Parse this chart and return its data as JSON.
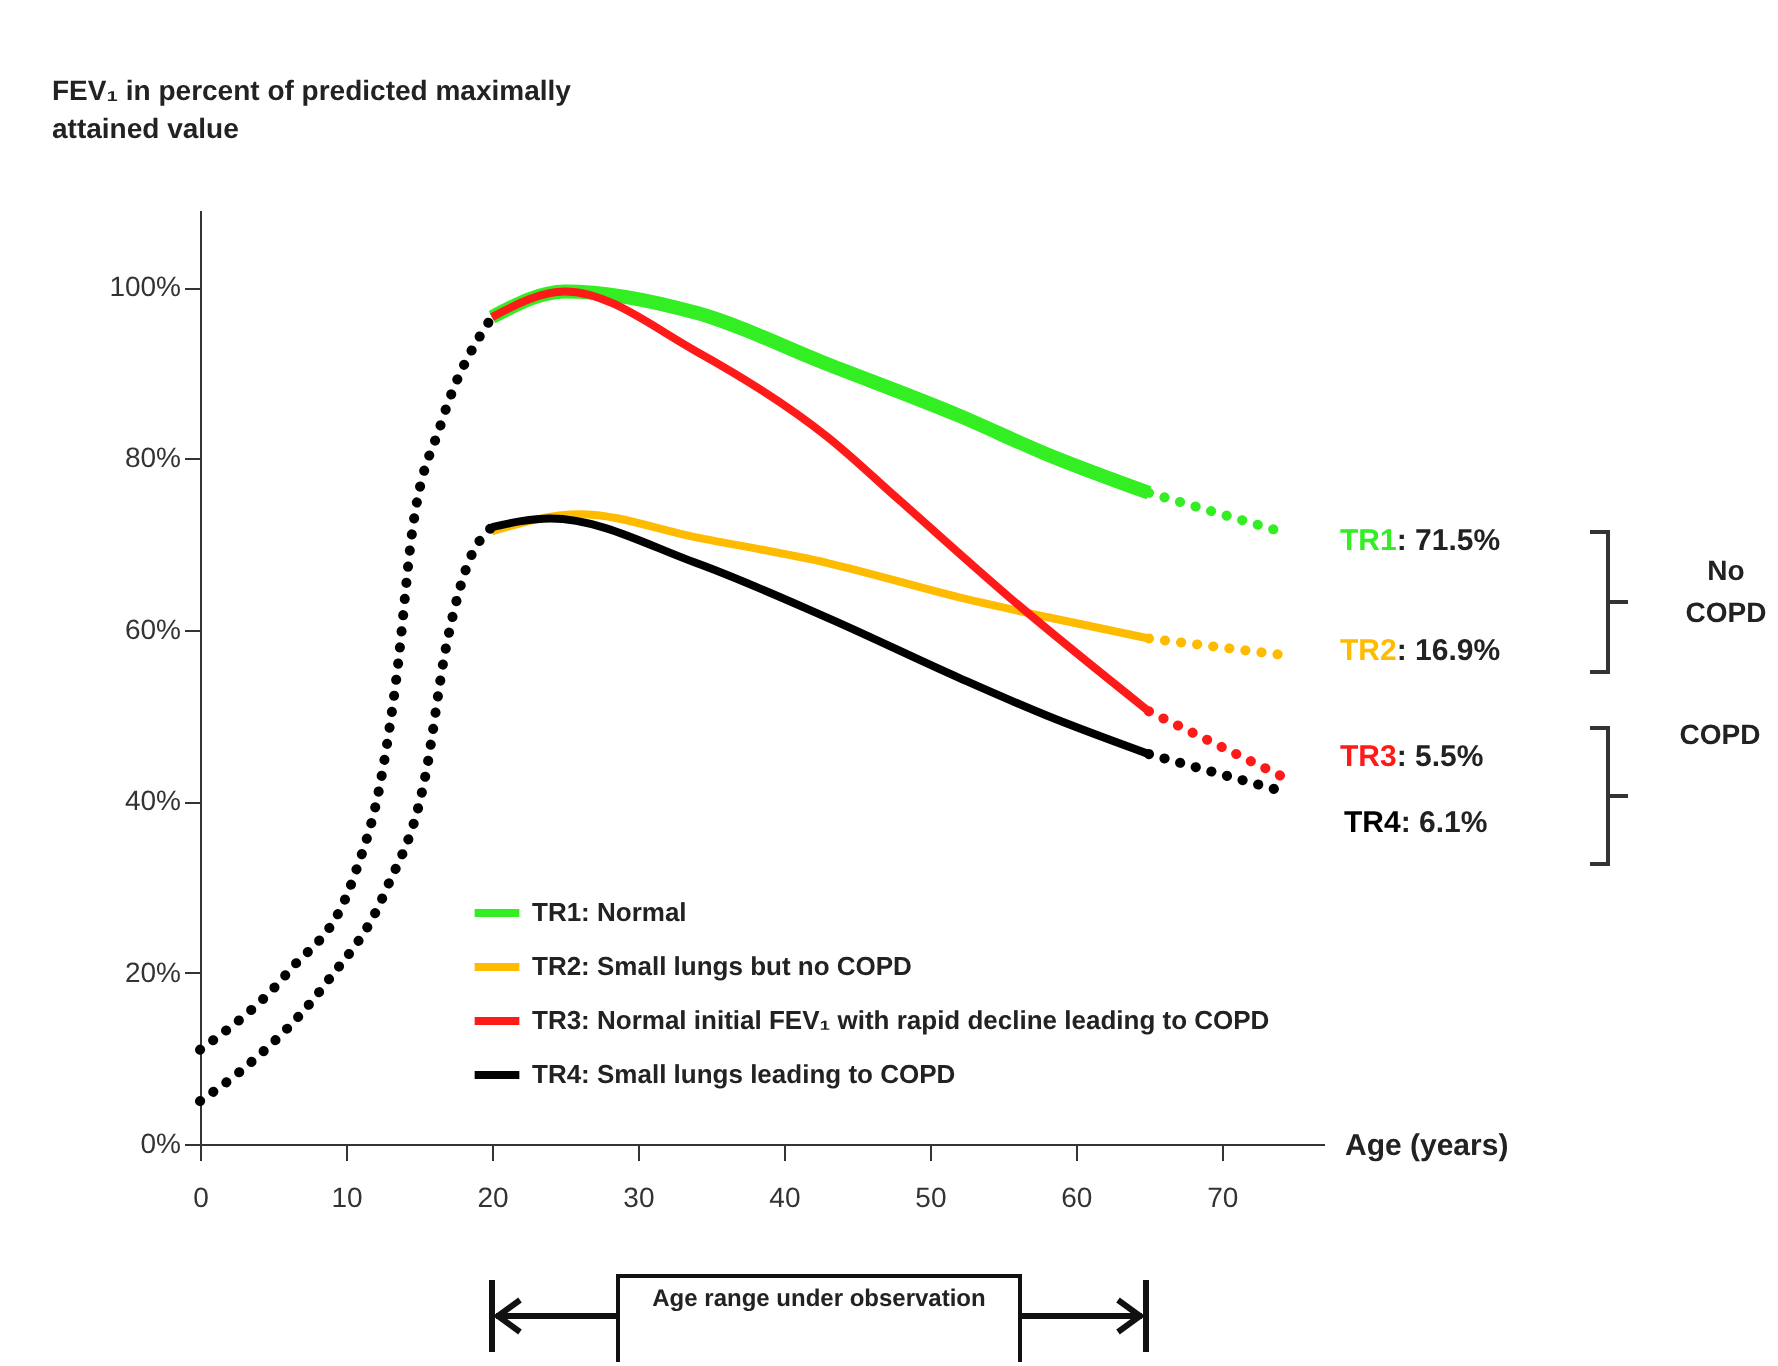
{
  "chart_data": {
    "type": "line",
    "ylabel": "FEV₁ in percent of predicted maximally attained value",
    "xlabel": "Age (years)",
    "xlim": [
      0,
      77
    ],
    "ylim": [
      0,
      109
    ],
    "xticks": [
      0,
      10,
      20,
      30,
      40,
      50,
      60,
      70
    ],
    "yticks": [
      {
        "value": 0,
        "label": "0%"
      },
      {
        "value": 20,
        "label": "20%"
      },
      {
        "value": 40,
        "label": "40%"
      },
      {
        "value": 60,
        "label": "60%"
      },
      {
        "value": 80,
        "label": "80%"
      },
      {
        "value": 100,
        "label": "100%"
      }
    ],
    "grid": false,
    "legend": "bottom",
    "series": [
      {
        "name": "TR1: Normal",
        "color": "#33ee22",
        "x": [
          20,
          25,
          34,
          43,
          52,
          58,
          65
        ],
        "values": [
          96.5,
          99.5,
          97,
          91,
          85,
          80.5,
          76
        ]
      },
      {
        "name": "TR2: Small lungs but no COPD",
        "color": "#ffbb00",
        "x": [
          20,
          26,
          34,
          43,
          52,
          58,
          65
        ],
        "values": [
          71.5,
          73.5,
          70.8,
          67.8,
          63.8,
          61.5,
          59
        ]
      },
      {
        "name": "TR3: Normal initial FEV₁ with rapid decline leading to COPD",
        "color": "#ff1a1a",
        "x": [
          20,
          25,
          34,
          43,
          48,
          56,
          65
        ],
        "values": [
          96.5,
          99.5,
          92.5,
          82.5,
          75,
          63,
          50.5
        ]
      },
      {
        "name": "TR4: Small lungs leading to COPD",
        "color": "#000000",
        "x": [
          20,
          24,
          34,
          43,
          52,
          58,
          65
        ],
        "values": [
          72,
          73,
          67.8,
          61.4,
          54.4,
          50,
          45.5
        ]
      },
      {
        "color": "#33ee22",
        "line_style": "dotted",
        "x": [
          65,
          74
        ],
        "values": [
          76,
          71.5
        ]
      },
      {
        "color": "#ffbb00",
        "line_style": "dotted",
        "x": [
          65,
          74.5
        ],
        "values": [
          59,
          57
        ]
      },
      {
        "color": "#ff1a1a",
        "line_style": "dotted",
        "x": [
          65,
          74
        ],
        "values": [
          50.5,
          43
        ]
      },
      {
        "color": "#000000",
        "line_style": "dotted",
        "x": [
          65,
          74.5
        ],
        "values": [
          45.5,
          41
        ]
      },
      {
        "color": "#000000",
        "line_style": "dotted",
        "x": [
          0,
          6,
          10.5,
          12.5,
          13.5,
          14.5,
          16.5,
          20
        ],
        "values": [
          11,
          20,
          31,
          43.5,
          55,
          71,
          84,
          96.5
        ]
      },
      {
        "color": "#000000",
        "line_style": "dotted",
        "x": [
          0,
          2.7,
          8.6,
          12.7,
          15.5,
          16.8,
          18.2,
          20
        ],
        "values": [
          5,
          8.4,
          18.7,
          29.5,
          43.5,
          57.5,
          67,
          72
        ]
      }
    ],
    "annotations": [
      "TR1: 71.5%",
      "TR2: 16.9%",
      "TR3: 5.5%",
      "TR4: 6.1%",
      "No COPD",
      "COPD",
      "Age range under observation"
    ]
  }
}
